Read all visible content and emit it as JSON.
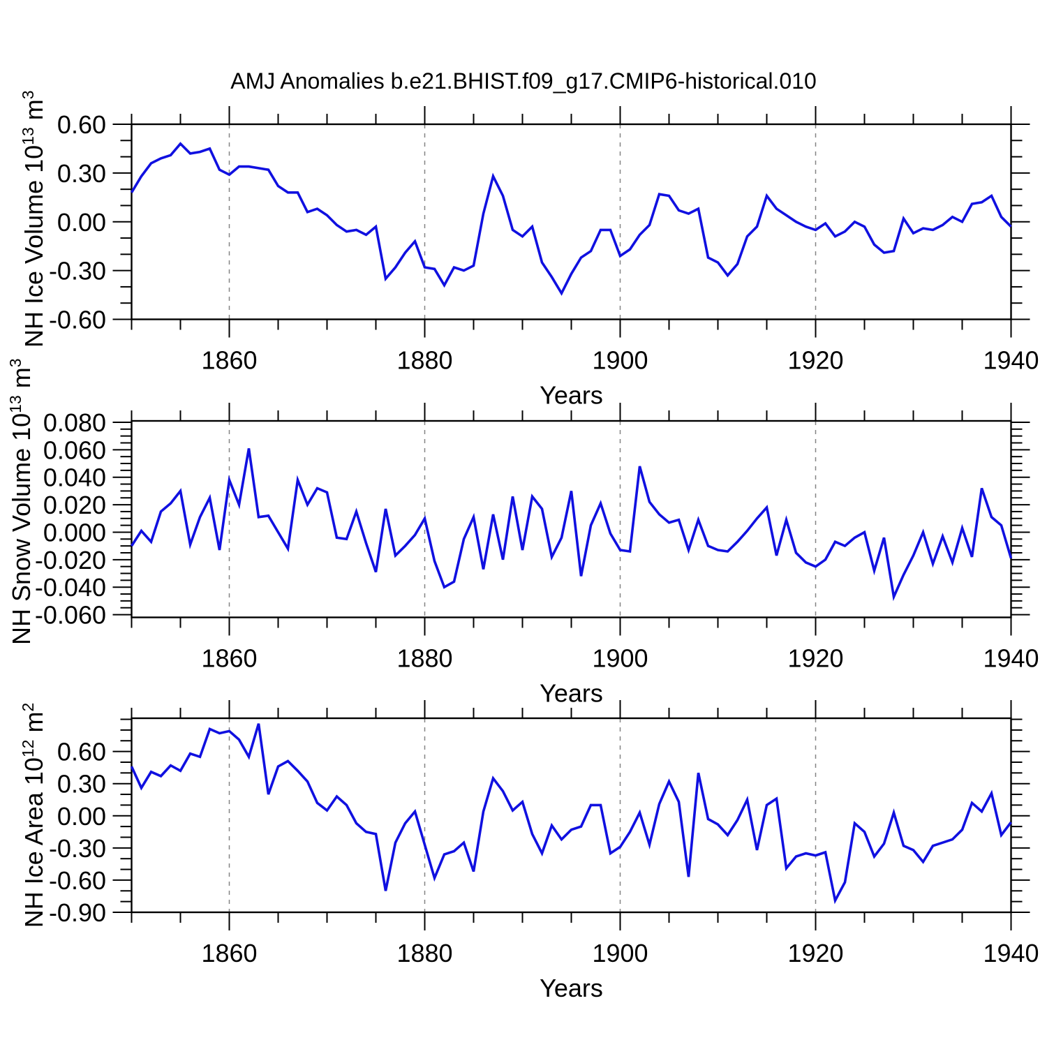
{
  "header": {
    "title": "AMJ Anomalies b.e21.BHIST.f09_g17.CMIP6-historical.010"
  },
  "accent_colors": {
    "line_blue": "#1010E0",
    "gridline_gray": "#848484",
    "frame_black": "#000000"
  },
  "chart_data": [
    {
      "type": "line",
      "name": "nh-ice-volume",
      "ylabel": {
        "prefix": "NH Ice Volume 10",
        "exp": "13",
        "unit": " m",
        "unit_exp": "3"
      },
      "xlabel": "Years",
      "x_start": 1850,
      "x_step": 1,
      "x_end": 1940,
      "x_ticks_major": [
        1860,
        1880,
        1900,
        1920,
        1940
      ],
      "x_tick_minor_step": 5,
      "gridlines_at": [
        1860,
        1880,
        1900,
        1920
      ],
      "ylim": [
        -0.6,
        0.6
      ],
      "y_ticks_major": [
        0.6,
        0.3,
        0.0,
        -0.3,
        -0.6
      ],
      "y_tick_labels": [
        "0.60",
        "0.30",
        "0.00",
        "-0.30",
        "-0.60"
      ],
      "y_tick_minor_step": 0.1,
      "grid": false,
      "legend": "none",
      "line_color": "#1010E0",
      "values": [
        0.18,
        0.28,
        0.36,
        0.39,
        0.41,
        0.48,
        0.42,
        0.43,
        0.45,
        0.32,
        0.29,
        0.34,
        0.34,
        0.33,
        0.32,
        0.22,
        0.18,
        0.18,
        0.06,
        0.08,
        0.04,
        -0.02,
        -0.06,
        -0.05,
        -0.08,
        -0.03,
        -0.35,
        -0.28,
        -0.19,
        -0.12,
        -0.28,
        -0.29,
        -0.39,
        -0.28,
        -0.3,
        -0.27,
        0.05,
        0.28,
        0.16,
        -0.05,
        -0.09,
        -0.03,
        -0.25,
        -0.34,
        -0.44,
        -0.32,
        -0.22,
        -0.18,
        -0.05,
        -0.05,
        -0.21,
        -0.17,
        -0.08,
        -0.02,
        0.17,
        0.16,
        0.07,
        0.05,
        0.08,
        -0.22,
        -0.25,
        -0.33,
        -0.26,
        -0.09,
        -0.03,
        0.16,
        0.08,
        0.04,
        0.0,
        -0.03,
        -0.05,
        -0.01,
        -0.09,
        -0.06,
        0.0,
        -0.03,
        -0.14,
        -0.19,
        -0.18,
        0.02,
        -0.07,
        -0.04,
        -0.05,
        -0.02,
        0.03,
        0.0,
        0.11,
        0.12,
        0.16,
        0.03,
        -0.03
      ]
    },
    {
      "type": "line",
      "name": "nh-snow-volume",
      "ylabel": {
        "prefix": "NH Snow Volume 10",
        "exp": "13",
        "unit": " m",
        "unit_exp": "3"
      },
      "xlabel": "Years",
      "x_start": 1850,
      "x_step": 1,
      "x_end": 1940,
      "x_ticks_major": [
        1860,
        1880,
        1900,
        1920,
        1940
      ],
      "x_tick_minor_step": 5,
      "gridlines_at": [
        1860,
        1880,
        1900,
        1920
      ],
      "ylim": [
        -0.062,
        0.081
      ],
      "y_ticks_major": [
        0.08,
        0.06,
        0.04,
        0.02,
        0.0,
        -0.02,
        -0.04,
        -0.06
      ],
      "y_tick_labels": [
        "0.080",
        "0.060",
        "0.040",
        "0.020",
        "0.000",
        "-0.020",
        "-0.040",
        "-0.060"
      ],
      "y_tick_minor_step": 0.005,
      "grid": false,
      "legend": "none",
      "line_color": "#1010E0",
      "values": [
        -0.01,
        0.001,
        -0.007,
        0.015,
        0.021,
        0.03,
        -0.009,
        0.011,
        0.025,
        -0.013,
        0.038,
        0.02,
        0.061,
        0.011,
        0.012,
        0.0,
        -0.012,
        0.038,
        0.02,
        0.032,
        0.029,
        -0.004,
        -0.005,
        0.015,
        -0.008,
        -0.029,
        0.017,
        -0.017,
        -0.01,
        -0.002,
        0.01,
        -0.021,
        -0.04,
        -0.036,
        -0.005,
        0.011,
        -0.027,
        0.013,
        -0.02,
        0.026,
        -0.013,
        0.026,
        0.017,
        -0.018,
        -0.004,
        0.03,
        -0.032,
        0.005,
        0.021,
        -0.001,
        -0.013,
        -0.014,
        0.048,
        0.022,
        0.013,
        0.007,
        0.009,
        -0.013,
        0.009,
        -0.01,
        -0.013,
        -0.014,
        -0.007,
        0.001,
        0.01,
        0.018,
        -0.017,
        0.009,
        -0.015,
        -0.022,
        -0.025,
        -0.02,
        -0.007,
        -0.01,
        -0.004,
        0.0,
        -0.028,
        -0.004,
        -0.047,
        -0.031,
        -0.017,
        0.0,
        -0.023,
        -0.003,
        -0.022,
        0.003,
        -0.018,
        0.032,
        0.011,
        0.005,
        -0.019
      ]
    },
    {
      "type": "line",
      "name": "nh-ice-area",
      "ylabel": {
        "prefix": "NH Ice Area 10",
        "exp": "12",
        "unit": " m",
        "unit_exp": "2"
      },
      "xlabel": "Years",
      "x_start": 1850,
      "x_step": 1,
      "x_end": 1940,
      "x_ticks_major": [
        1860,
        1880,
        1900,
        1920,
        1940
      ],
      "x_tick_minor_step": 5,
      "gridlines_at": [
        1860,
        1880,
        1900,
        1920
      ],
      "ylim": [
        -0.9,
        0.91
      ],
      "y_ticks_major": [
        0.6,
        0.3,
        0.0,
        -0.3,
        -0.6,
        -0.9
      ],
      "y_tick_labels": [
        "0.60",
        "0.30",
        "0.00",
        "-0.30",
        "-0.60",
        "-0.90"
      ],
      "y_tick_minor_step": 0.1,
      "grid": false,
      "legend": "none",
      "line_color": "#1010E0",
      "values": [
        0.46,
        0.26,
        0.41,
        0.37,
        0.47,
        0.42,
        0.58,
        0.55,
        0.81,
        0.77,
        0.79,
        0.71,
        0.55,
        0.86,
        0.2,
        0.46,
        0.51,
        0.42,
        0.32,
        0.12,
        0.05,
        0.18,
        0.1,
        -0.07,
        -0.15,
        -0.17,
        -0.7,
        -0.25,
        -0.07,
        0.04,
        -0.27,
        -0.58,
        -0.36,
        -0.33,
        -0.25,
        -0.52,
        0.04,
        0.35,
        0.23,
        0.05,
        0.13,
        -0.17,
        -0.35,
        -0.09,
        -0.22,
        -0.13,
        -0.1,
        0.1,
        0.1,
        -0.35,
        -0.29,
        -0.15,
        0.03,
        -0.27,
        0.11,
        0.32,
        0.13,
        -0.57,
        0.4,
        -0.03,
        -0.08,
        -0.18,
        -0.04,
        0.15,
        -0.32,
        0.1,
        0.16,
        -0.49,
        -0.38,
        -0.35,
        -0.37,
        -0.34,
        -0.79,
        -0.62,
        -0.07,
        -0.15,
        -0.38,
        -0.26,
        0.03,
        -0.28,
        -0.32,
        -0.43,
        -0.28,
        -0.25,
        -0.22,
        -0.13,
        0.12,
        0.04,
        0.21,
        -0.18,
        -0.06
      ]
    }
  ]
}
